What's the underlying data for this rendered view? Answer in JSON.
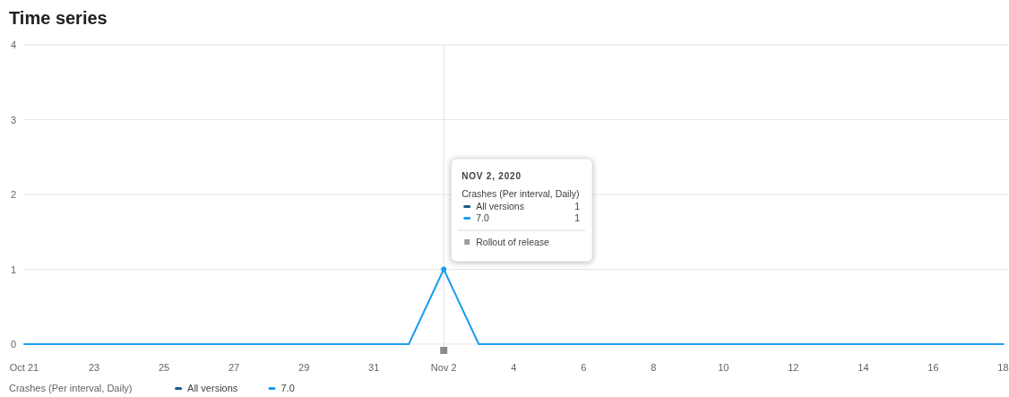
{
  "chart_data": {
    "type": "line",
    "title": "Time series",
    "legend_title": "Crashes (Per interval, Daily)",
    "x": [
      "2020-10-21",
      "2020-10-22",
      "2020-10-23",
      "2020-10-24",
      "2020-10-25",
      "2020-10-26",
      "2020-10-27",
      "2020-10-28",
      "2020-10-29",
      "2020-10-30",
      "2020-10-31",
      "2020-11-01",
      "2020-11-02",
      "2020-11-03",
      "2020-11-04",
      "2020-11-05",
      "2020-11-06",
      "2020-11-07",
      "2020-11-08",
      "2020-11-09",
      "2020-11-10",
      "2020-11-11",
      "2020-11-12",
      "2020-11-13",
      "2020-11-14",
      "2020-11-15",
      "2020-11-16",
      "2020-11-17",
      "2020-11-18"
    ],
    "series": [
      {
        "name": "All versions",
        "color": "#185a8c",
        "values": [
          null,
          null,
          null,
          null,
          null,
          null,
          null,
          null,
          null,
          null,
          null,
          null,
          null,
          null,
          null,
          null,
          null,
          null,
          null,
          null,
          null,
          null,
          null,
          null,
          null,
          null,
          null,
          null,
          null
        ]
      },
      {
        "name": "7.0",
        "color": "#1a9cf2",
        "values": [
          0,
          0,
          0,
          0,
          0,
          0,
          0,
          0,
          0,
          0,
          0,
          0,
          1,
          0,
          0,
          0,
          0,
          0,
          0,
          0,
          0,
          0,
          0,
          0,
          0,
          0,
          0,
          0,
          0
        ]
      }
    ],
    "xlim": [
      "2020-10-21",
      "2020-11-18T04:00"
    ],
    "xticks": [
      {
        "value": "2020-10-21",
        "label": "Oct 21"
      },
      {
        "value": "2020-10-23",
        "label": "23"
      },
      {
        "value": "2020-10-25",
        "label": "25"
      },
      {
        "value": "2020-10-27",
        "label": "27"
      },
      {
        "value": "2020-10-29",
        "label": "29"
      },
      {
        "value": "2020-10-31",
        "label": "31"
      },
      {
        "value": "2020-11-02",
        "label": "Nov 2"
      },
      {
        "value": "2020-11-04",
        "label": "4"
      },
      {
        "value": "2020-11-06",
        "label": "6"
      },
      {
        "value": "2020-11-08",
        "label": "8"
      },
      {
        "value": "2020-11-10",
        "label": "10"
      },
      {
        "value": "2020-11-12",
        "label": "12"
      },
      {
        "value": "2020-11-14",
        "label": "14"
      },
      {
        "value": "2020-11-16",
        "label": "16"
      },
      {
        "value": "2020-11-18",
        "label": "18"
      }
    ],
    "ylim": [
      0,
      4
    ],
    "yticks": [
      0,
      1,
      2,
      3,
      4
    ],
    "grid": "y",
    "legend": "bottom",
    "marker": "none",
    "line_style": "solid",
    "ref_lines": [
      {
        "axis": "x",
        "value": "2020-11-02",
        "color": "#e0e0e0"
      }
    ],
    "annotations": [
      {
        "text": "NOV 2, 2020",
        "x": "2020-11-02"
      },
      "Rollout of release",
      "1",
      "1"
    ]
  }
}
